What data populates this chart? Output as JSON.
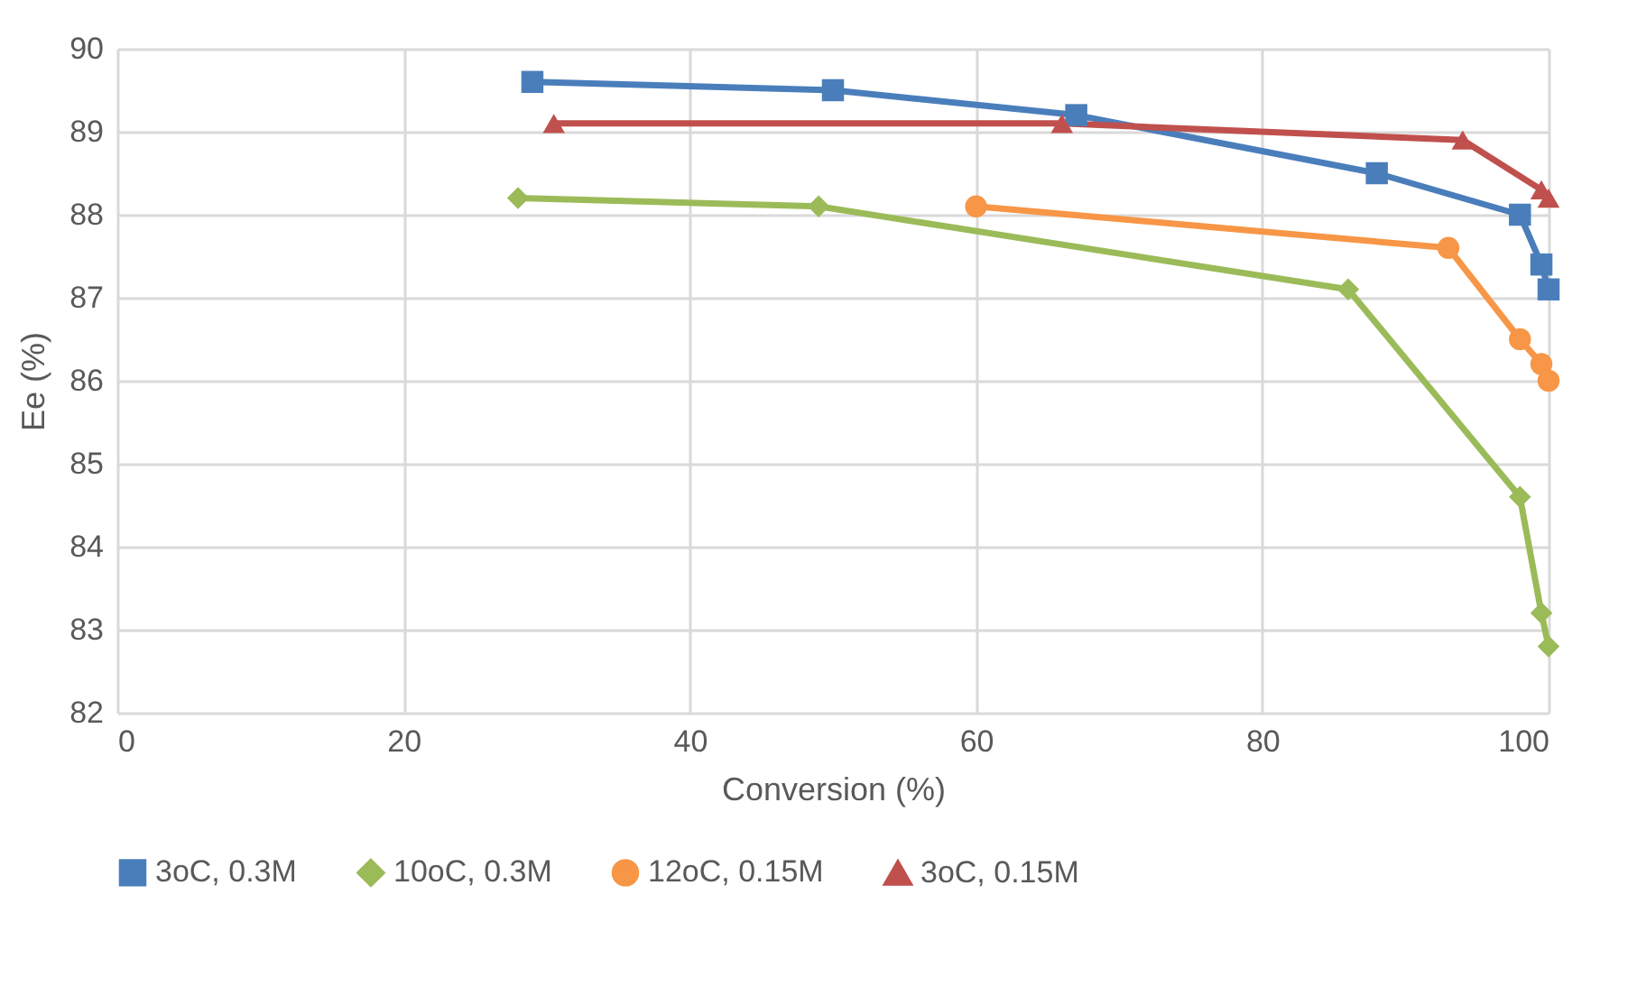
{
  "chart_data": {
    "type": "line",
    "xlabel": "Conversion (%)",
    "ylabel": "Ee (%)",
    "xlim": [
      0,
      100
    ],
    "xticks": [
      0,
      20,
      40,
      60,
      80,
      100
    ],
    "ylim": [
      82,
      90
    ],
    "yticks": [
      82,
      83,
      84,
      85,
      86,
      87,
      88,
      89,
      90
    ],
    "grid": true,
    "legend": "bottom",
    "series": [
      {
        "name": "3oC, 0.3M",
        "color": "#4a7ebb",
        "marker": "square",
        "x": [
          29,
          50,
          67,
          88,
          98,
          99.5,
          100
        ],
        "values": [
          89.6,
          89.5,
          89.2,
          88.5,
          88.0,
          87.4,
          87.1
        ]
      },
      {
        "name": "10oC, 0.3M",
        "color": "#9bbb59",
        "marker": "diamond",
        "x": [
          28,
          49,
          86,
          98,
          99.5,
          100
        ],
        "values": [
          88.2,
          88.1,
          87.1,
          84.6,
          83.2,
          82.8
        ]
      },
      {
        "name": "12oC, 0.15M",
        "color": "#f79646",
        "marker": "circle",
        "x": [
          60,
          93,
          98,
          99.5,
          100
        ],
        "values": [
          88.1,
          87.6,
          86.5,
          86.2,
          86.0
        ]
      },
      {
        "name": "3oC, 0.15M",
        "color": "#c0504d",
        "marker": "triangle",
        "x": [
          30.5,
          66,
          94,
          99.5,
          100
        ],
        "values": [
          89.1,
          89.1,
          88.9,
          88.3,
          88.2
        ]
      }
    ]
  }
}
